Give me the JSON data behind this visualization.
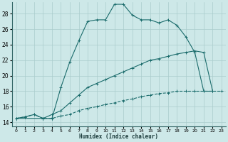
{
  "xlabel": "Humidex (Indice chaleur)",
  "background_color": "#cde8e8",
  "grid_color": "#aacccc",
  "line_color": "#1a6b6b",
  "xlim": [
    -0.5,
    23.5
  ],
  "ylim": [
    13.5,
    29.5
  ],
  "yticks": [
    14,
    16,
    18,
    20,
    22,
    24,
    26,
    28
  ],
  "xticks": [
    0,
    1,
    2,
    3,
    4,
    5,
    6,
    7,
    8,
    9,
    10,
    11,
    12,
    13,
    14,
    15,
    16,
    17,
    18,
    19,
    20,
    21,
    22,
    23
  ],
  "series": [
    {
      "x": [
        0,
        1,
        2,
        3,
        4,
        5,
        6,
        7,
        8,
        9,
        10,
        11,
        12,
        13,
        14,
        15,
        16,
        17,
        18,
        19,
        20,
        21,
        22
      ],
      "y": [
        14.5,
        14.7,
        15.0,
        14.5,
        14.5,
        18.5,
        21.8,
        24.5,
        27.0,
        27.2,
        27.2,
        29.2,
        29.2,
        27.8,
        27.2,
        27.2,
        26.8,
        27.2,
        26.5,
        25.0,
        23.0,
        18.0,
        18.0
      ],
      "linestyle": "-"
    },
    {
      "x": [
        0,
        3,
        4,
        5,
        6,
        7,
        8,
        9,
        10,
        11,
        12,
        13,
        14,
        15,
        16,
        17,
        18,
        19,
        20,
        21,
        22
      ],
      "y": [
        14.5,
        14.5,
        15.0,
        15.5,
        16.5,
        17.5,
        18.5,
        19.0,
        19.5,
        20.0,
        20.5,
        21.0,
        21.5,
        22.0,
        22.2,
        22.5,
        22.8,
        23.0,
        23.2,
        23.0,
        18.0
      ],
      "linestyle": "-"
    },
    {
      "x": [
        0,
        1,
        2,
        3,
        4,
        5,
        6,
        7,
        8,
        9,
        10,
        11,
        12,
        13,
        14,
        15,
        16,
        17,
        18,
        19,
        20,
        21,
        22,
        23
      ],
      "y": [
        14.5,
        14.7,
        15.0,
        14.5,
        14.5,
        14.8,
        15.0,
        15.5,
        15.8,
        16.0,
        16.3,
        16.5,
        16.8,
        17.0,
        17.3,
        17.5,
        17.7,
        17.8,
        18.0,
        18.0,
        18.0,
        18.0,
        18.0,
        18.0
      ],
      "linestyle": "--"
    }
  ]
}
